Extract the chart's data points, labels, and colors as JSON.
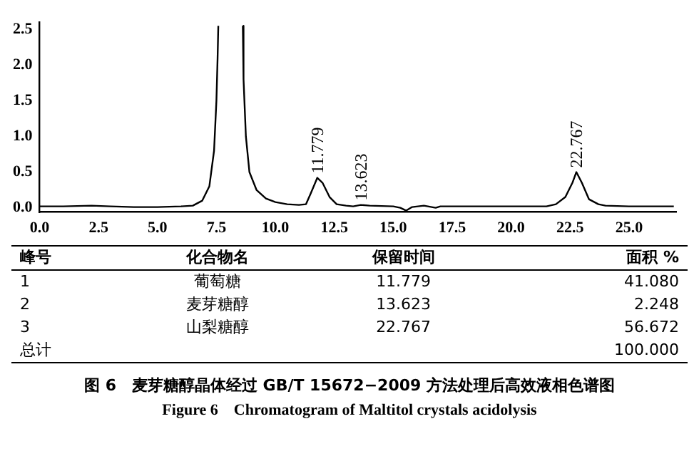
{
  "chart_data": {
    "type": "line",
    "title": "图 6　麦芽糖醇晶体经过 GB/T 15672−2009 方法处理后高效液相色谱图",
    "subtitle": "Figure 6　Chromatogram of Maltitol crystals acidolysis",
    "x": [
      0,
      1,
      2.2,
      3,
      4,
      5,
      6,
      6.5,
      6.9,
      7.2,
      7.4,
      7.5,
      7.55,
      7.58,
      8.1,
      8.62,
      8.65,
      8.75,
      8.9,
      9.2,
      9.6,
      10,
      10.5,
      11,
      11.3,
      11.5,
      11.779,
      12,
      12.3,
      12.6,
      13,
      13.3,
      13.623,
      14,
      15,
      15.3,
      15.55,
      15.8,
      16.3,
      16.8,
      17,
      19,
      21.5,
      21.9,
      22.3,
      22.6,
      22.767,
      23,
      23.3,
      23.7,
      24,
      25,
      26.9
    ],
    "series": [
      {
        "color": "#000000",
        "values": [
          0.02,
          0.02,
          0.03,
          0.02,
          0.01,
          0.01,
          0.02,
          0.03,
          0.1,
          0.3,
          0.8,
          1.5,
          2.1,
          2.55,
          null,
          2.55,
          1.8,
          1.0,
          0.5,
          0.25,
          0.13,
          0.08,
          0.05,
          0.04,
          0.05,
          0.2,
          0.42,
          0.35,
          0.15,
          0.05,
          0.03,
          0.02,
          0.04,
          0.03,
          0.02,
          0.0,
          -0.04,
          0.01,
          0.03,
          0.0,
          0.02,
          0.02,
          0.02,
          0.05,
          0.15,
          0.35,
          0.5,
          0.35,
          0.12,
          0.05,
          0.03,
          0.02,
          0.02
        ]
      }
    ],
    "xlim": [
      0,
      27
    ],
    "xticks": [
      {
        "value": 0,
        "label": "0.0"
      },
      2.5,
      {
        "value": 5,
        "label": "5.0"
      },
      7.5,
      {
        "value": 10,
        "label": "10.0"
      },
      12.5,
      {
        "value": 15,
        "label": "15.0"
      },
      17.5,
      {
        "value": 20,
        "label": "20.0"
      },
      22.5,
      {
        "value": 25,
        "label": "25.0"
      }
    ],
    "ylim": [
      -0.06,
      2.6
    ],
    "yticks": [
      {
        "value": 0,
        "label": "0.0"
      },
      0.5,
      {
        "value": 1,
        "label": "1.0"
      },
      1.5,
      {
        "value": 2,
        "label": "2.0"
      },
      2.5
    ],
    "grid": false,
    "legend": false,
    "marker": "none",
    "line_style": "solid",
    "annotations": [
      {
        "text": "11.779",
        "x": 11.779,
        "y": 0.42
      },
      {
        "text": "13.623",
        "x": 13.623,
        "y": 0.04
      },
      {
        "text": "22.767",
        "x": 22.767,
        "y": 0.5
      },
      "峰号",
      "化合物名",
      "保留时间",
      "面积 %",
      "1",
      "葡萄糖",
      "11.779",
      "41.080",
      "2",
      "麦芽糖醇",
      "13.623",
      "2.248",
      "3",
      "山梨糖醇",
      "22.767",
      "56.672",
      "总计",
      null,
      null,
      "100.000"
    ]
  }
}
